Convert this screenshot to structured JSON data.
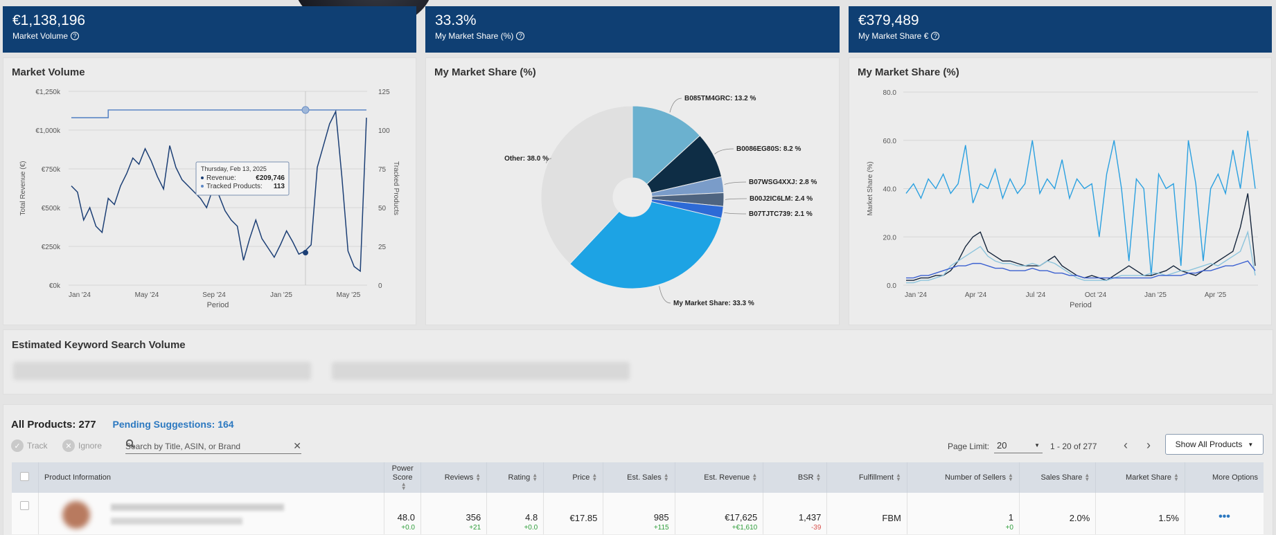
{
  "kpis": [
    {
      "value": "€1,138,196",
      "label": "Market Volume"
    },
    {
      "value": "33.3%",
      "label": "My Market Share (%)"
    },
    {
      "value": "€379,489",
      "label": "My Market Share €"
    }
  ],
  "colors": {
    "kpi_bg": "#0f3f73",
    "revenue_line": "#1c3f75",
    "tracked_line": "#5b86c5",
    "pie_light": "#6bb1cf",
    "pie_dark": "#0e2d45",
    "pie_mine": "#1da3e4",
    "pie_other": "#e0e0e0",
    "link": "#2b78c0"
  },
  "chart_data": [
    {
      "type": "line",
      "title": "Market Volume",
      "xlabel": "Period",
      "ylabel": "Total Revenue (€)",
      "y2label": "Tracked Products",
      "x_ticks": [
        "Jan '24",
        "May '24",
        "Sep '24",
        "Jan '25",
        "May '25"
      ],
      "y_ticks": [
        "€0k",
        "€250k",
        "€500k",
        "€750k",
        "€1,000k",
        "€1,250k"
      ],
      "y2_ticks": [
        "0",
        "25",
        "50",
        "75",
        "100",
        "125"
      ],
      "ylim": [
        0,
        1250000
      ],
      "y2lim": [
        0,
        125
      ],
      "series": [
        {
          "name": "Revenue",
          "values": [
            640000,
            600000,
            420000,
            500000,
            380000,
            340000,
            560000,
            520000,
            640000,
            720000,
            820000,
            780000,
            880000,
            800000,
            700000,
            620000,
            900000,
            760000,
            680000,
            640000,
            600000,
            560000,
            500000,
            620000,
            580000,
            480000,
            420000,
            380000,
            160000,
            300000,
            420000,
            300000,
            240000,
            180000,
            260000,
            350000,
            280000,
            200000,
            220000,
            260000,
            760000,
            900000,
            1040000,
            1120000,
            700000,
            220000,
            120000,
            90000,
            1080000
          ]
        },
        {
          "name": "Tracked Products",
          "values": [
            108,
            108,
            108,
            108,
            108,
            108,
            113,
            113,
            113,
            113,
            113,
            113,
            113,
            113,
            113,
            113,
            113,
            113,
            113,
            113,
            113,
            113,
            113,
            113,
            113,
            113,
            113,
            113,
            113,
            113,
            113,
            113,
            113,
            113,
            113,
            113,
            113,
            113,
            113,
            113,
            113,
            113,
            113,
            113,
            113,
            113,
            113,
            113,
            113
          ]
        }
      ],
      "tooltip": {
        "date": "Thursday, Feb 13, 2025",
        "rows": [
          {
            "label": "Revenue:",
            "value": "€209,746"
          },
          {
            "label": "Tracked Products:",
            "value": "113"
          }
        ]
      }
    },
    {
      "type": "pie",
      "title": "My Market Share (%)",
      "slices": [
        {
          "label": "B085TM4GRC",
          "value": 13.2,
          "text": "B085TM4GRC: 13.2 %",
          "color": "#6bb1cf"
        },
        {
          "label": "B0086EG80S",
          "value": 8.2,
          "text": "B0086EG80S: 8.2 %",
          "color": "#0e2d45"
        },
        {
          "label": "B07WSG4XXJ",
          "value": 2.8,
          "text": "B07WSG4XXJ: 2.8 %",
          "color": "#7a9cc9"
        },
        {
          "label": "B00J2IC6LM",
          "value": 2.4,
          "text": "B00J2IC6LM: 2.4 %",
          "color": "#4e6480"
        },
        {
          "label": "B07TJTC739",
          "value": 2.1,
          "text": "B07TJTC739: 2.1 %",
          "color": "#2d6ad6"
        },
        {
          "label": "My Market Share",
          "value": 33.3,
          "text": "My Market Share: 33.3 %",
          "color": "#1da3e4"
        },
        {
          "label": "Other",
          "value": 38.0,
          "text": "Other: 38.0 %",
          "color": "#e0e0e0"
        }
      ]
    },
    {
      "type": "line",
      "title": "My Market Share (%)",
      "xlabel": "Period",
      "ylabel": "Market Share (%)",
      "x_ticks": [
        "Jan '24",
        "Apr '24",
        "Jul '24",
        "Oct '24",
        "Jan '25",
        "Apr '25"
      ],
      "y_ticks": [
        "0.0",
        "20.0",
        "40.0",
        "60.0",
        "80.0"
      ],
      "ylim": [
        0,
        80
      ],
      "series": [
        {
          "color": "#2aa0e0",
          "values": [
            38,
            42,
            36,
            44,
            40,
            46,
            38,
            42,
            58,
            34,
            42,
            40,
            48,
            36,
            44,
            38,
            42,
            60,
            38,
            44,
            40,
            52,
            36,
            44,
            40,
            42,
            20,
            46,
            60,
            40,
            10,
            44,
            40,
            4,
            46,
            40,
            42,
            8,
            60,
            42,
            10,
            40,
            46,
            38,
            56,
            40,
            64,
            40
          ]
        },
        {
          "color": "#14243a",
          "values": [
            2,
            2,
            3,
            3,
            4,
            4,
            6,
            10,
            16,
            20,
            22,
            14,
            12,
            10,
            10,
            9,
            8,
            8,
            8,
            10,
            12,
            8,
            6,
            4,
            3,
            4,
            3,
            2,
            4,
            6,
            8,
            6,
            4,
            4,
            5,
            6,
            8,
            6,
            5,
            4,
            6,
            8,
            10,
            12,
            14,
            24,
            38,
            8
          ]
        },
        {
          "color": "#8cc4dc",
          "values": [
            1,
            1,
            2,
            2,
            3,
            4,
            8,
            10,
            12,
            14,
            16,
            12,
            10,
            9,
            9,
            8,
            8,
            9,
            8,
            10,
            9,
            7,
            5,
            3,
            2,
            2,
            2,
            2,
            3,
            4,
            4,
            4,
            4,
            5,
            5,
            4,
            5,
            6,
            6,
            7,
            8,
            9,
            8,
            10,
            12,
            14,
            22,
            4
          ]
        },
        {
          "color": "#3a5fd0",
          "values": [
            3,
            3,
            4,
            4,
            5,
            6,
            7,
            8,
            8,
            9,
            9,
            8,
            7,
            7,
            6,
            6,
            6,
            7,
            6,
            6,
            5,
            5,
            4,
            4,
            3,
            3,
            3,
            3,
            3,
            3,
            3,
            3,
            3,
            3,
            4,
            4,
            4,
            4,
            5,
            5,
            6,
            6,
            7,
            8,
            8,
            9,
            10,
            6
          ]
        }
      ]
    }
  ],
  "ksv": {
    "title": "Estimated Keyword Search Volume"
  },
  "products": {
    "title": "All Products: 277",
    "pending": "Pending Suggestions: 164",
    "track": "Track",
    "ignore": "Ignore",
    "search_placeholder": "Search by Title, ASIN, or Brand",
    "page_limit_label": "Page Limit:",
    "page_limit_value": "20",
    "pager": "1 - 20 of 277",
    "show_all": "Show All Products",
    "columns": [
      "Product Information",
      "Power Score",
      "Reviews",
      "Rating",
      "Price",
      "Est. Sales",
      "Est. Revenue",
      "BSR",
      "Fulfillment",
      "Number of Sellers",
      "Sales Share",
      "Market Share",
      "More Options"
    ],
    "row": {
      "power_score": "48.0",
      "power_delta": "+0.0",
      "reviews": "356",
      "reviews_delta": "+21",
      "rating": "4.8",
      "rating_delta": "+0.0",
      "price": "€17.85",
      "sales": "985",
      "sales_delta": "+115",
      "revenue": "€17,625",
      "revenue_delta": "+€1,610",
      "bsr": "1,437",
      "bsr_delta": "-39",
      "fulfillment": "FBM",
      "sellers": "1",
      "sellers_delta": "+0",
      "sales_share": "2.0%",
      "market_share": "1.5%",
      "more": "•••"
    }
  }
}
